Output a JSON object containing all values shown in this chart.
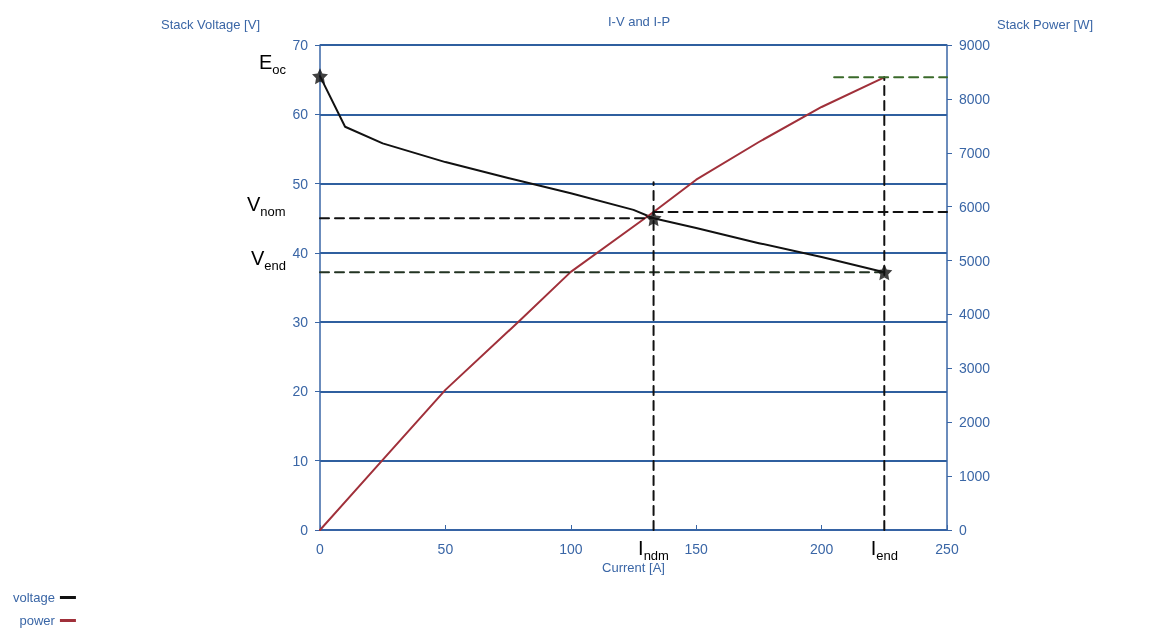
{
  "chart_data": {
    "type": "line",
    "title": "I-V and I-P",
    "xlabel": "Current [A]",
    "ylabel": "Stack Voltage [V]",
    "y2label": "Stack Power [W]",
    "xlim": [
      0,
      250
    ],
    "xticks": [
      0,
      50,
      100,
      150,
      200,
      250
    ],
    "ylim": [
      0,
      70
    ],
    "yticks": [
      0,
      10,
      20,
      30,
      40,
      50,
      60,
      70
    ],
    "y2lim": [
      0,
      9000
    ],
    "y2ticks": [
      0,
      1000,
      2000,
      3000,
      4000,
      5000,
      6000,
      7000,
      8000,
      9000
    ],
    "grid": "y",
    "legend": "bottom left",
    "marker": "none",
    "line_style": "solid",
    "series": [
      {
        "name": "voltage",
        "color": "#111111",
        "x": [
          0,
          10,
          25,
          50,
          75,
          100,
          125,
          133,
          150,
          175,
          200,
          225
        ],
        "values": [
          65.5,
          58.2,
          55.8,
          53.1,
          50.8,
          48.6,
          46.2,
          45.0,
          43.6,
          41.4,
          39.4,
          37.2
        ]
      },
      {
        "name": "power",
        "color": "#a0303a",
        "axis": "y2",
        "x": [
          0,
          25,
          50,
          80,
          100,
          133,
          150,
          175,
          200,
          225
        ],
        "values": [
          0,
          1300,
          2600,
          3900,
          4790,
          5900,
          6500,
          7200,
          7850,
          8400
        ]
      },
      {
        "type": "line",
        "color": "#111111",
        "line_style": "dashed",
        "x": [
          0,
          133
        ],
        "values": [
          45.0,
          45.0
        ]
      },
      {
        "type": "line",
        "color": "#111111",
        "line_style": "dashed",
        "axis": "y2",
        "x": [
          133,
          250
        ],
        "values": [
          5900,
          5900
        ]
      },
      {
        "type": "line",
        "color": "#223322",
        "line_style": "dashed",
        "x": [
          0,
          225
        ],
        "values": [
          37.2,
          37.2
        ]
      },
      {
        "type": "line",
        "color": "#111111",
        "line_style": "dashed",
        "x": [
          133,
          133
        ],
        "values": [
          0,
          50.2
        ]
      },
      {
        "type": "line",
        "color": "#111111",
        "line_style": "dashed",
        "axis": "y2",
        "x": [
          225,
          225
        ],
        "values": [
          0,
          8400
        ]
      },
      {
        "type": "line",
        "color": "#3a6a2a",
        "line_style": "dashed",
        "axis": "y2",
        "x": [
          205,
          250
        ],
        "values": [
          8400,
          8400
        ]
      },
      {
        "type": "scatter",
        "color": "#111111",
        "marker": "star",
        "x": [
          0,
          133,
          225
        ],
        "values": [
          65.5,
          45.0,
          37.2
        ]
      }
    ],
    "annotations": [
      {
        "text": "E$_{oc}$",
        "x": 0,
        "y": 65.5
      },
      {
        "text": "V$_{nom}$",
        "x": 0,
        "y": 45.0
      },
      {
        "text": "V$_{end}$",
        "x": 0,
        "y": 37.2
      },
      {
        "text": "I$_{ndm}$",
        "x": 133,
        "y": 0
      },
      {
        "text": "I$_{end}$",
        "x": 225,
        "y": 0
      }
    ]
  }
}
